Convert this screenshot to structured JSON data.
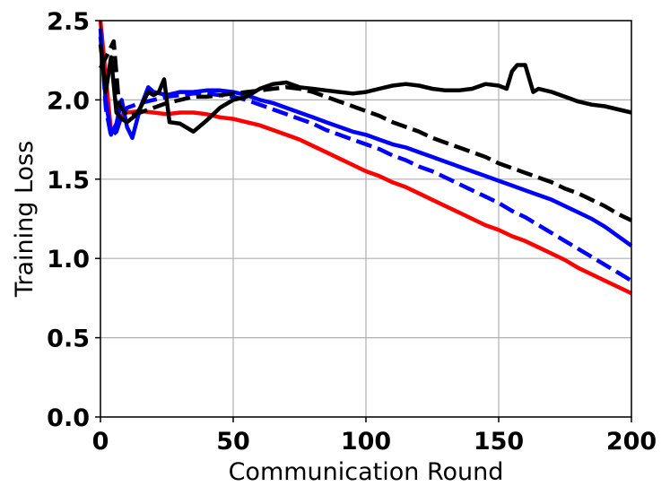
{
  "chart_data": {
    "type": "line",
    "xlabel": "Communication Round",
    "ylabel": "Training Loss",
    "xlim": [
      0,
      200
    ],
    "ylim": [
      0,
      2.5
    ],
    "xticks": [
      0,
      50,
      100,
      150,
      200
    ],
    "xtick_labels": [
      "0",
      "50",
      "100",
      "150",
      "200"
    ],
    "yticks": [
      0,
      0.5,
      1.0,
      1.5,
      2.0,
      2.5
    ],
    "ytick_labels": [
      "0.0",
      "0.5",
      "1.0",
      "1.5",
      "2.0",
      "2.5"
    ],
    "grid": true,
    "legend": "none",
    "series": [
      {
        "color": "#ff0000",
        "dash": "solid",
        "x": [
          0,
          2,
          4,
          6,
          8,
          10,
          15,
          20,
          25,
          30,
          35,
          40,
          45,
          50,
          55,
          60,
          65,
          70,
          75,
          80,
          85,
          90,
          95,
          100,
          105,
          110,
          115,
          120,
          125,
          130,
          135,
          140,
          145,
          150,
          155,
          160,
          165,
          170,
          175,
          180,
          185,
          190,
          195,
          200
        ],
        "y": [
          2.5,
          2.15,
          1.8,
          1.83,
          1.9,
          1.92,
          1.93,
          1.92,
          1.91,
          1.92,
          1.92,
          1.91,
          1.89,
          1.88,
          1.86,
          1.84,
          1.81,
          1.78,
          1.75,
          1.71,
          1.67,
          1.63,
          1.59,
          1.55,
          1.52,
          1.48,
          1.45,
          1.41,
          1.37,
          1.33,
          1.29,
          1.25,
          1.21,
          1.18,
          1.14,
          1.11,
          1.07,
          1.03,
          0.99,
          0.94,
          0.9,
          0.86,
          0.82,
          0.78
        ]
      },
      {
        "color": "#0000ff",
        "dash": "dashed",
        "x": [
          0,
          2,
          4,
          6,
          8,
          10,
          15,
          20,
          25,
          30,
          35,
          40,
          45,
          50,
          55,
          60,
          65,
          70,
          75,
          80,
          85,
          90,
          95,
          100,
          105,
          110,
          115,
          120,
          125,
          130,
          135,
          140,
          145,
          150,
          155,
          160,
          165,
          170,
          175,
          180,
          185,
          190,
          195,
          200
        ],
        "y": [
          2.45,
          1.95,
          1.77,
          1.8,
          1.9,
          1.95,
          1.98,
          2.0,
          2.02,
          2.03,
          2.04,
          2.04,
          2.03,
          2.02,
          2.0,
          1.97,
          1.94,
          1.91,
          1.88,
          1.85,
          1.81,
          1.78,
          1.75,
          1.72,
          1.69,
          1.65,
          1.62,
          1.58,
          1.55,
          1.51,
          1.47,
          1.43,
          1.39,
          1.35,
          1.3,
          1.26,
          1.21,
          1.16,
          1.11,
          1.06,
          1.01,
          0.96,
          0.91,
          0.86
        ]
      },
      {
        "color": "#0000ff",
        "dash": "solid",
        "x": [
          0,
          2,
          4,
          6,
          8,
          10,
          12,
          15,
          18,
          20,
          25,
          30,
          35,
          40,
          45,
          50,
          55,
          60,
          65,
          70,
          75,
          80,
          85,
          90,
          95,
          100,
          105,
          110,
          115,
          120,
          125,
          130,
          135,
          140,
          145,
          150,
          155,
          160,
          165,
          170,
          175,
          180,
          185,
          190,
          195,
          200
        ],
        "y": [
          2.4,
          2.0,
          1.78,
          1.85,
          2.0,
          1.83,
          1.76,
          1.95,
          2.08,
          2.05,
          2.03,
          2.05,
          2.05,
          2.06,
          2.06,
          2.05,
          2.03,
          2.0,
          1.98,
          1.95,
          1.92,
          1.89,
          1.86,
          1.83,
          1.8,
          1.78,
          1.75,
          1.72,
          1.7,
          1.67,
          1.64,
          1.61,
          1.58,
          1.55,
          1.52,
          1.49,
          1.46,
          1.43,
          1.4,
          1.37,
          1.33,
          1.29,
          1.25,
          1.2,
          1.14,
          1.08
        ]
      },
      {
        "color": "#000000",
        "dash": "dashed",
        "x": [
          0,
          3,
          5,
          7,
          10,
          15,
          20,
          25,
          30,
          35,
          40,
          45,
          50,
          55,
          60,
          65,
          70,
          75,
          80,
          85,
          90,
          95,
          100,
          105,
          110,
          115,
          120,
          125,
          130,
          135,
          140,
          145,
          150,
          155,
          160,
          165,
          170,
          175,
          180,
          185,
          190,
          195,
          200
        ],
        "y": [
          2.2,
          2.3,
          2.37,
          1.97,
          1.9,
          1.92,
          1.95,
          1.98,
          2.0,
          2.02,
          2.02,
          2.03,
          2.04,
          2.05,
          2.06,
          2.07,
          2.08,
          2.07,
          2.05,
          2.02,
          1.99,
          1.96,
          1.93,
          1.9,
          1.86,
          1.83,
          1.8,
          1.76,
          1.73,
          1.7,
          1.67,
          1.64,
          1.6,
          1.57,
          1.54,
          1.51,
          1.48,
          1.44,
          1.41,
          1.37,
          1.33,
          1.28,
          1.24
        ]
      },
      {
        "color": "#000000",
        "dash": "solid",
        "x": [
          0,
          2,
          4,
          6,
          8,
          10,
          13,
          15,
          18,
          20,
          22,
          24,
          26,
          30,
          35,
          40,
          45,
          50,
          55,
          60,
          65,
          70,
          75,
          80,
          85,
          90,
          95,
          100,
          105,
          110,
          115,
          120,
          125,
          130,
          135,
          140,
          145,
          150,
          153,
          155,
          157,
          160,
          163,
          165,
          170,
          175,
          180,
          185,
          190,
          195,
          200
        ],
        "y": [
          2.35,
          2.05,
          2.27,
          1.92,
          1.88,
          1.86,
          1.9,
          1.95,
          2.05,
          2.03,
          2.05,
          2.13,
          1.86,
          1.85,
          1.8,
          1.87,
          1.95,
          2.0,
          2.02,
          2.07,
          2.1,
          2.11,
          2.08,
          2.07,
          2.06,
          2.05,
          2.04,
          2.05,
          2.07,
          2.09,
          2.1,
          2.09,
          2.07,
          2.06,
          2.06,
          2.07,
          2.1,
          2.09,
          2.07,
          2.18,
          2.22,
          2.22,
          2.05,
          2.07,
          2.05,
          2.02,
          1.99,
          1.97,
          1.96,
          1.94,
          1.92
        ]
      }
    ]
  }
}
